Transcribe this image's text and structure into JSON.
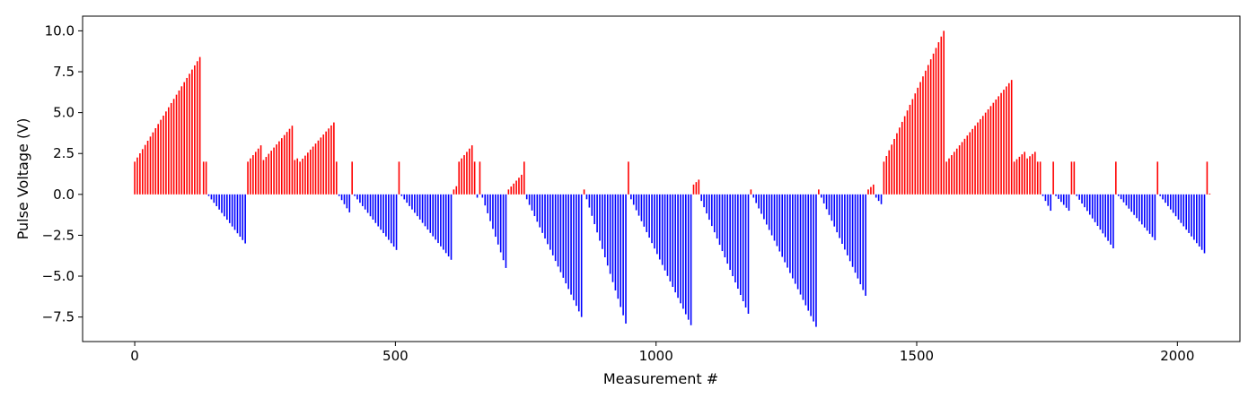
{
  "chart_data": {
    "type": "bar",
    "title": "",
    "xlabel": "Measurement #",
    "ylabel": "Pulse Voltage (V)",
    "xlim": [
      -100,
      2120
    ],
    "ylim": [
      -9.0,
      10.9
    ],
    "xticks": [
      0,
      500,
      1000,
      1500,
      2000
    ],
    "xtick_labels": [
      "0",
      "500",
      "1000",
      "1500",
      "2000"
    ],
    "yticks": [
      -7.5,
      -5.0,
      -2.5,
      0.0,
      2.5,
      5.0,
      7.5,
      10.0
    ],
    "ytick_labels": [
      "−7.5",
      "−5.0",
      "−2.5",
      "0.0",
      "2.5",
      "5.0",
      "7.5",
      "10.0"
    ],
    "grid": false,
    "legend": "none",
    "colors": {
      "positive": "#ff0000",
      "negative": "#0000ff"
    },
    "bar_spacing": 5,
    "segments": [
      {
        "x_start": 0,
        "x_end": 127,
        "y_start": 2.0,
        "y_end": 8.4
      },
      {
        "x_start": 132,
        "x_end": 137,
        "y_start": 2.0,
        "y_end": 2.0
      },
      {
        "x_start": 142,
        "x_end": 212,
        "y_start": -0.1,
        "y_end": -3.0
      },
      {
        "x_start": 217,
        "x_end": 242,
        "y_start": 2.0,
        "y_end": 3.0
      },
      {
        "x_start": 247,
        "x_end": 302,
        "y_start": 2.1,
        "y_end": 4.2
      },
      {
        "x_start": 307,
        "x_end": 312,
        "y_start": 2.1,
        "y_end": 2.2
      },
      {
        "x_start": 317,
        "x_end": 382,
        "y_start": 2.0,
        "y_end": 4.4
      },
      {
        "x_start": 387,
        "x_end": 387,
        "y_start": 2.0,
        "y_end": 2.0
      },
      {
        "x_start": 392,
        "x_end": 412,
        "y_start": -0.1,
        "y_end": -1.1
      },
      {
        "x_start": 417,
        "x_end": 417,
        "y_start": 2.0,
        "y_end": 2.0
      },
      {
        "x_start": 422,
        "x_end": 502,
        "y_start": -0.1,
        "y_end": -3.4
      },
      {
        "x_start": 507,
        "x_end": 507,
        "y_start": 2.0,
        "y_end": 2.0
      },
      {
        "x_start": 512,
        "x_end": 607,
        "y_start": -0.1,
        "y_end": -4.0
      },
      {
        "x_start": 612,
        "x_end": 617,
        "y_start": 0.3,
        "y_end": 0.5
      },
      {
        "x_start": 622,
        "x_end": 647,
        "y_start": 2.0,
        "y_end": 3.0
      },
      {
        "x_start": 652,
        "x_end": 652,
        "y_start": 2.0,
        "y_end": 2.0
      },
      {
        "x_start": 657,
        "x_end": 657,
        "y_start": -0.2,
        "y_end": -0.2
      },
      {
        "x_start": 662,
        "x_end": 662,
        "y_start": 2.0,
        "y_end": 2.0
      },
      {
        "x_start": 667,
        "x_end": 712,
        "y_start": -0.2,
        "y_end": -4.5
      },
      {
        "x_start": 717,
        "x_end": 742,
        "y_start": 0.3,
        "y_end": 1.2
      },
      {
        "x_start": 747,
        "x_end": 747,
        "y_start": 2.0,
        "y_end": 2.0
      },
      {
        "x_start": 752,
        "x_end": 857,
        "y_start": -0.3,
        "y_end": -7.5
      },
      {
        "x_start": 862,
        "x_end": 862,
        "y_start": 0.3,
        "y_end": 0.3
      },
      {
        "x_start": 867,
        "x_end": 942,
        "y_start": -0.3,
        "y_end": -7.9
      },
      {
        "x_start": 947,
        "x_end": 947,
        "y_start": 2.0,
        "y_end": 2.0
      },
      {
        "x_start": 952,
        "x_end": 1067,
        "y_start": -0.3,
        "y_end": -8.0
      },
      {
        "x_start": 1072,
        "x_end": 1082,
        "y_start": 0.6,
        "y_end": 0.9
      },
      {
        "x_start": 1087,
        "x_end": 1177,
        "y_start": -0.4,
        "y_end": -7.3
      },
      {
        "x_start": 1182,
        "x_end": 1182,
        "y_start": 0.3,
        "y_end": 0.3
      },
      {
        "x_start": 1187,
        "x_end": 1307,
        "y_start": -0.2,
        "y_end": -8.1
      },
      {
        "x_start": 1312,
        "x_end": 1312,
        "y_start": 0.3,
        "y_end": 0.3
      },
      {
        "x_start": 1317,
        "x_end": 1402,
        "y_start": -0.2,
        "y_end": -6.2
      },
      {
        "x_start": 1407,
        "x_end": 1417,
        "y_start": 0.3,
        "y_end": 0.6
      },
      {
        "x_start": 1422,
        "x_end": 1432,
        "y_start": -0.2,
        "y_end": -0.6
      },
      {
        "x_start": 1437,
        "x_end": 1552,
        "y_start": 2.0,
        "y_end": 10.0
      },
      {
        "x_start": 1557,
        "x_end": 1682,
        "y_start": 2.0,
        "y_end": 7.0
      },
      {
        "x_start": 1687,
        "x_end": 1707,
        "y_start": 2.0,
        "y_end": 2.6
      },
      {
        "x_start": 1712,
        "x_end": 1727,
        "y_start": 2.2,
        "y_end": 2.6
      },
      {
        "x_start": 1732,
        "x_end": 1737,
        "y_start": 2.0,
        "y_end": 2.0
      },
      {
        "x_start": 1742,
        "x_end": 1757,
        "y_start": -0.1,
        "y_end": -1.0
      },
      {
        "x_start": 1762,
        "x_end": 1762,
        "y_start": 2.0,
        "y_end": 2.0
      },
      {
        "x_start": 1767,
        "x_end": 1792,
        "y_start": -0.1,
        "y_end": -1.0
      },
      {
        "x_start": 1797,
        "x_end": 1802,
        "y_start": 2.0,
        "y_end": 2.0
      },
      {
        "x_start": 1807,
        "x_end": 1877,
        "y_start": -0.1,
        "y_end": -3.3
      },
      {
        "x_start": 1882,
        "x_end": 1882,
        "y_start": 2.0,
        "y_end": 2.0
      },
      {
        "x_start": 1887,
        "x_end": 1957,
        "y_start": -0.1,
        "y_end": -2.8
      },
      {
        "x_start": 1962,
        "x_end": 1962,
        "y_start": 2.0,
        "y_end": 2.0
      },
      {
        "x_start": 1967,
        "x_end": 2052,
        "y_start": -0.1,
        "y_end": -3.6
      },
      {
        "x_start": 2057,
        "x_end": 2057,
        "y_start": 2.0,
        "y_end": 2.0
      },
      {
        "x_start": 2062,
        "x_end": 2062,
        "y_start": 0.05,
        "y_end": 0.05
      }
    ]
  }
}
